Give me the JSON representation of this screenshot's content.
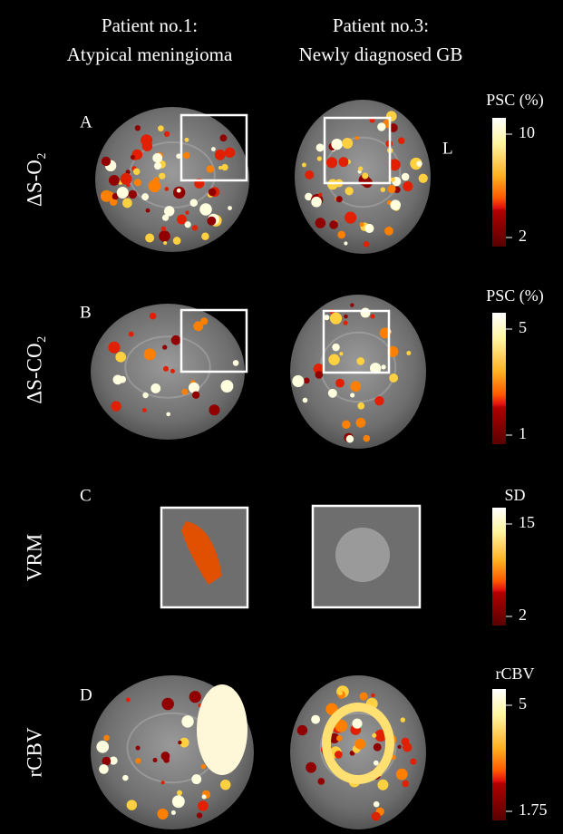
{
  "columns": [
    {
      "line1": "Patient no.1:",
      "line2": "Atypical meningioma"
    },
    {
      "line1": "Patient no.3:",
      "line2": "Newly diagnosed GB"
    }
  ],
  "side_label": "L",
  "rows": [
    {
      "label": "ΔS-O₂",
      "panel": "A",
      "colorbar": {
        "title": "PSC (%)",
        "max": 10,
        "min": 2
      }
    },
    {
      "label": "ΔS-CO₂",
      "panel": "B",
      "colorbar": {
        "title": "PSC (%)",
        "max": 5,
        "min": 1
      }
    },
    {
      "label": "VRM",
      "panel": "C",
      "colorbar": {
        "title": "SD",
        "max": 15,
        "min": 2
      }
    },
    {
      "label": "rCBV",
      "panel": "D",
      "colorbar": {
        "title": "rCBV",
        "max": 5,
        "min": 1.75
      }
    }
  ]
}
